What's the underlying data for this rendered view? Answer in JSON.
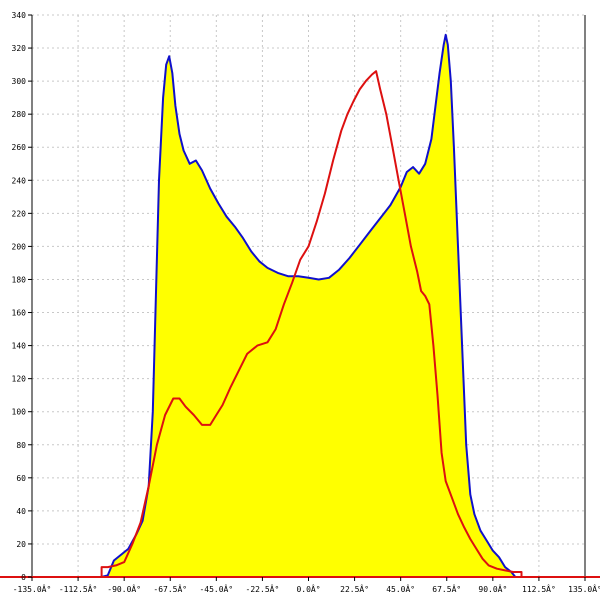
{
  "chart_data": {
    "type": "area",
    "title": "",
    "xlabel": "",
    "ylabel": "",
    "xlim": [
      -135,
      135
    ],
    "ylim": [
      0,
      340
    ],
    "grid": true,
    "x_tick_labels": [
      "-135.0Â°",
      "-112.5Â°",
      "-90.0Â°",
      "-67.5Â°",
      "-45.0Â°",
      "-22.5Â°",
      "0.0Â°",
      "22.5Â°",
      "45.0Â°",
      "67.5Â°",
      "90.0Â°",
      "112.5Â°",
      "135.0Â°"
    ],
    "x_ticks": [
      -135,
      -112.5,
      -90,
      -67.5,
      -45,
      -22.5,
      0,
      22.5,
      45,
      67.5,
      90,
      112.5,
      135
    ],
    "y_ticks": [
      0,
      20,
      40,
      60,
      80,
      100,
      120,
      140,
      160,
      180,
      200,
      220,
      240,
      260,
      280,
      300,
      320,
      340
    ],
    "y_tick_labels": [
      "0",
      "20",
      "40",
      "60",
      "80",
      "100",
      "120",
      "140",
      "160",
      "180",
      "200",
      "220",
      "240",
      "260",
      "280",
      "300",
      "320",
      "340"
    ],
    "series": [
      {
        "role": "blue-outline-filled",
        "color": "#1010cc",
        "fill": "#ffff00",
        "points": [
          [
            -101,
            0
          ],
          [
            -98,
            1
          ],
          [
            -95,
            10
          ],
          [
            -92,
            13
          ],
          [
            -88,
            17
          ],
          [
            -84,
            26
          ],
          [
            -81,
            34
          ],
          [
            -78,
            55
          ],
          [
            -76,
            100
          ],
          [
            -74.5,
            170
          ],
          [
            -73,
            240
          ],
          [
            -71,
            290
          ],
          [
            -69.5,
            310
          ],
          [
            -68,
            315
          ],
          [
            -66.5,
            305
          ],
          [
            -65,
            285
          ],
          [
            -63,
            268
          ],
          [
            -61,
            258
          ],
          [
            -58,
            250
          ],
          [
            -55,
            252
          ],
          [
            -52,
            246
          ],
          [
            -48,
            235
          ],
          [
            -44,
            226
          ],
          [
            -40,
            218
          ],
          [
            -36,
            212
          ],
          [
            -32,
            205
          ],
          [
            -28,
            197
          ],
          [
            -24,
            191
          ],
          [
            -20,
            187
          ],
          [
            -15,
            184
          ],
          [
            -10,
            182
          ],
          [
            -5,
            182
          ],
          [
            0,
            181
          ],
          [
            5,
            180
          ],
          [
            10,
            181
          ],
          [
            15,
            186
          ],
          [
            20,
            193
          ],
          [
            25,
            201
          ],
          [
            30,
            209
          ],
          [
            35,
            217
          ],
          [
            40,
            225
          ],
          [
            45,
            236
          ],
          [
            48,
            245
          ],
          [
            51,
            248
          ],
          [
            54,
            244
          ],
          [
            57,
            250
          ],
          [
            60,
            265
          ],
          [
            62,
            285
          ],
          [
            64,
            305
          ],
          [
            66,
            322
          ],
          [
            67,
            328
          ],
          [
            68,
            322
          ],
          [
            69.5,
            300
          ],
          [
            71,
            260
          ],
          [
            73,
            200
          ],
          [
            75,
            140
          ],
          [
            77,
            80
          ],
          [
            79,
            50
          ],
          [
            81,
            38
          ],
          [
            84,
            28
          ],
          [
            87,
            22
          ],
          [
            90,
            16
          ],
          [
            93,
            12
          ],
          [
            96,
            6
          ],
          [
            99,
            3
          ],
          [
            101,
            0
          ]
        ]
      },
      {
        "role": "red-line",
        "color": "#dd1010",
        "points": [
          [
            -135,
            0
          ],
          [
            -101,
            0
          ],
          [
            -101,
            6
          ],
          [
            -98,
            6
          ],
          [
            -94,
            7
          ],
          [
            -90,
            9
          ],
          [
            -86,
            20
          ],
          [
            -82,
            33
          ],
          [
            -78,
            55
          ],
          [
            -74,
            80
          ],
          [
            -70,
            98
          ],
          [
            -66,
            108
          ],
          [
            -63,
            108
          ],
          [
            -60,
            103
          ],
          [
            -56,
            98
          ],
          [
            -52,
            92
          ],
          [
            -48,
            92
          ],
          [
            -45,
            98
          ],
          [
            -42,
            104
          ],
          [
            -38,
            115
          ],
          [
            -34,
            125
          ],
          [
            -30,
            135
          ],
          [
            -25,
            140
          ],
          [
            -20,
            142
          ],
          [
            -16,
            150
          ],
          [
            -12,
            165
          ],
          [
            -8,
            178
          ],
          [
            -4,
            192
          ],
          [
            0,
            200
          ],
          [
            4,
            215
          ],
          [
            8,
            232
          ],
          [
            12,
            252
          ],
          [
            16,
            270
          ],
          [
            19,
            280
          ],
          [
            22,
            288
          ],
          [
            25,
            295
          ],
          [
            28,
            300
          ],
          [
            31,
            304
          ],
          [
            33,
            306
          ],
          [
            35,
            295
          ],
          [
            38,
            280
          ],
          [
            41,
            260
          ],
          [
            44,
            240
          ],
          [
            47,
            220
          ],
          [
            50,
            200
          ],
          [
            53,
            185
          ],
          [
            55,
            173
          ],
          [
            57,
            170
          ],
          [
            59,
            165
          ],
          [
            61,
            140
          ],
          [
            63,
            110
          ],
          [
            65,
            75
          ],
          [
            67,
            58
          ],
          [
            70,
            48
          ],
          [
            73,
            38
          ],
          [
            76,
            30
          ],
          [
            79,
            23
          ],
          [
            82,
            17
          ],
          [
            85,
            11
          ],
          [
            88,
            7
          ],
          [
            92,
            5
          ],
          [
            96,
            4
          ],
          [
            100,
            3
          ],
          [
            104,
            3
          ],
          [
            104,
            0
          ],
          [
            135,
            0
          ]
        ]
      }
    ]
  }
}
